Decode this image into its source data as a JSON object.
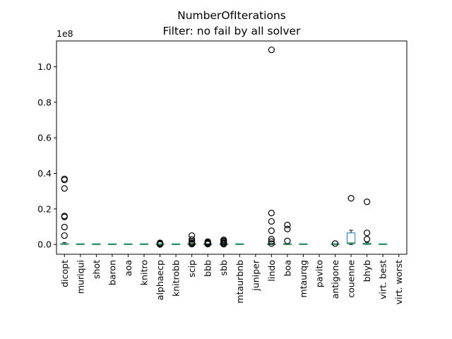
{
  "chart_data": {
    "type": "box",
    "title": "NumberOfIterations",
    "subtitle": "Filter: no fail by all solver",
    "xlabel": "",
    "ylabel": "",
    "y_multiplier_label": "1e8",
    "ylim": [
      -5500000,
      114500000
    ],
    "yticks": [
      0,
      20000000,
      40000000,
      60000000,
      80000000,
      100000000
    ],
    "ytick_labels": [
      "0.0",
      "0.2",
      "0.4",
      "0.6",
      "0.8",
      "1.0"
    ],
    "grid": false,
    "categories": [
      "dicopt",
      "muriqui",
      "shot",
      "baron",
      "aoa",
      "knitro",
      "alphaecp",
      "knitrobb",
      "scip",
      "bbb",
      "sbb",
      "mtaurbnb",
      "juniper",
      "lindo",
      "boa",
      "mtaurqg",
      "pavito",
      "antigone",
      "couenne",
      "bhyb",
      "virt. best",
      "virt. worst"
    ],
    "boxes": [
      {
        "name": "dicopt",
        "q1": 50000,
        "median": 150000,
        "q3": 400000,
        "whisker_low": 0,
        "whisker_high": 1000000,
        "outliers": [
          36900000,
          36300000,
          31500000,
          16000000,
          15500000,
          9800000,
          5000000
        ]
      },
      {
        "name": "muriqui",
        "q1": 0,
        "median": 0,
        "q3": 10000,
        "whisker_low": 0,
        "whisker_high": 20000,
        "outliers": []
      },
      {
        "name": "shot",
        "q1": 0,
        "median": 0,
        "q3": 10000,
        "whisker_low": 0,
        "whisker_high": 20000,
        "outliers": []
      },
      {
        "name": "baron",
        "q1": 0,
        "median": 0,
        "q3": 10000,
        "whisker_low": 0,
        "whisker_high": 20000,
        "outliers": []
      },
      {
        "name": "aoa",
        "q1": 0,
        "median": 0,
        "q3": 10000,
        "whisker_low": 0,
        "whisker_high": 20000,
        "outliers": []
      },
      {
        "name": "knitro",
        "q1": 0,
        "median": 0,
        "q3": 10000,
        "whisker_low": 0,
        "whisker_high": 20000,
        "outliers": []
      },
      {
        "name": "alphaecp",
        "q1": 0,
        "median": 0,
        "q3": 10000,
        "whisker_low": 0,
        "whisker_high": 20000,
        "outliers": [
          900000,
          500000,
          200000,
          0
        ]
      },
      {
        "name": "knitrobb",
        "q1": 0,
        "median": 0,
        "q3": 10000,
        "whisker_low": 0,
        "whisker_high": 20000,
        "outliers": []
      },
      {
        "name": "scip",
        "q1": 0,
        "median": 20000,
        "q3": 60000,
        "whisker_low": 0,
        "whisker_high": 150000,
        "outliers": [
          5000000,
          2800000,
          1800000,
          1000000,
          500000,
          200000
        ]
      },
      {
        "name": "bbb",
        "q1": 0,
        "median": 0,
        "q3": 20000,
        "whisker_low": 0,
        "whisker_high": 50000,
        "outliers": [
          1600000,
          1100000,
          700000,
          400000,
          200000
        ]
      },
      {
        "name": "sbb",
        "q1": 0,
        "median": 0,
        "q3": 20000,
        "whisker_low": 0,
        "whisker_high": 50000,
        "outliers": [
          2600000,
          2000000,
          1400000,
          800000,
          400000,
          200000
        ]
      },
      {
        "name": "mtaurbnb",
        "q1": 0,
        "median": 0,
        "q3": 10000,
        "whisker_low": 0,
        "whisker_high": 20000,
        "outliers": []
      },
      {
        "name": "juniper",
        "q1": null,
        "median": null,
        "q3": null,
        "whisker_low": null,
        "whisker_high": null,
        "outliers": []
      },
      {
        "name": "lindo",
        "q1": 0,
        "median": 50000,
        "q3": 200000,
        "whisker_low": 0,
        "whisker_high": 500000,
        "outliers": [
          109500000,
          17700000,
          13000000,
          7700000,
          3000000,
          1700000,
          500000
        ]
      },
      {
        "name": "boa",
        "q1": 0,
        "median": 30000,
        "q3": 100000,
        "whisker_low": 0,
        "whisker_high": 300000,
        "outliers": [
          11000000,
          8700000,
          2000000
        ]
      },
      {
        "name": "mtaurqg",
        "q1": 0,
        "median": 0,
        "q3": 10000,
        "whisker_low": 0,
        "whisker_high": 20000,
        "outliers": []
      },
      {
        "name": "pavito",
        "q1": null,
        "median": null,
        "q3": null,
        "whisker_low": null,
        "whisker_high": null,
        "outliers": []
      },
      {
        "name": "antigone",
        "q1": 0,
        "median": 50000,
        "q3": 200000,
        "whisker_low": 0,
        "whisker_high": 400000,
        "outliers": [
          500000
        ]
      },
      {
        "name": "couenne",
        "q1": 500000,
        "median": 900000,
        "q3": 6500000,
        "whisker_low": 0,
        "whisker_high": 8000000,
        "outliers": [
          26000000
        ]
      },
      {
        "name": "bhyb",
        "q1": 100000,
        "median": 300000,
        "q3": 700000,
        "whisker_low": 0,
        "whisker_high": 1200000,
        "outliers": [
          24000000,
          6500000,
          3000000
        ]
      },
      {
        "name": "virt. best",
        "q1": 0,
        "median": 0,
        "q3": 10000,
        "whisker_low": 0,
        "whisker_high": 20000,
        "outliers": []
      },
      {
        "name": "virt. worst",
        "q1": null,
        "median": null,
        "q3": null,
        "whisker_low": null,
        "whisker_high": null,
        "outliers": []
      }
    ],
    "colors": {
      "box": "#1f77b4",
      "whisker": "#000000",
      "median": "#2ca02c",
      "outlier": "#000000"
    }
  }
}
